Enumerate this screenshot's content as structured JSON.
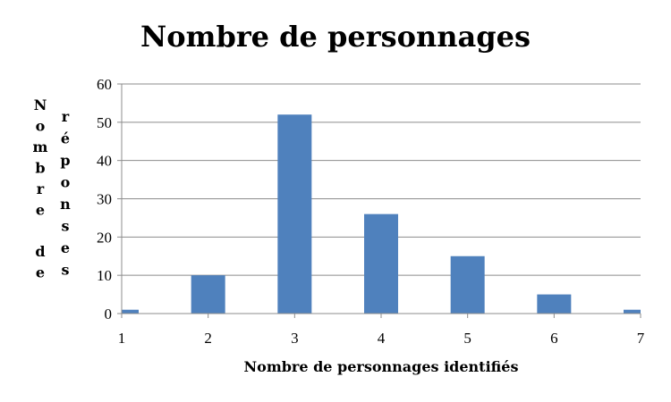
{
  "chart_data": {
    "type": "bar",
    "title": "Nombre de personnages",
    "xlabel": "Nombre de personnages identifiés",
    "ylabel": "Nombre de réponses",
    "ylabel_lines": [
      "Nombre",
      "de",
      "réponses"
    ],
    "categories": [
      "1",
      "2",
      "3",
      "4",
      "5",
      "6",
      "7"
    ],
    "values": [
      1,
      10,
      52,
      26,
      15,
      5,
      1
    ],
    "ylim": [
      0,
      60
    ],
    "yticks": [
      "0",
      "10",
      "20",
      "30",
      "40",
      "50",
      "60"
    ],
    "xticks": [
      "1",
      "2",
      "3",
      "4",
      "5",
      "6",
      "7"
    ],
    "grid": true,
    "legend": "none",
    "colors": {
      "bar": "#4F81BD",
      "grid": "#8C8C8C",
      "axis": "#8C8C8C"
    }
  }
}
